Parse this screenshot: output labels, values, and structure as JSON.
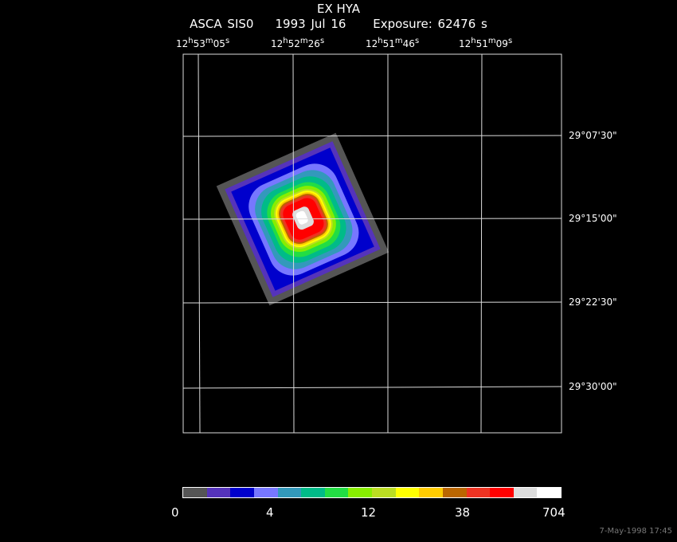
{
  "header": {
    "target": "EX HYA",
    "instrument": "ASCA SIS0",
    "date": "1993 Jul 16",
    "exposure": "Exposure: 62476 s"
  },
  "ra_ticks": [
    {
      "h": "12",
      "m": "53",
      "s": "05"
    },
    {
      "h": "12",
      "m": "52",
      "s": "26"
    },
    {
      "h": "12",
      "m": "51",
      "s": "46"
    },
    {
      "h": "12",
      "m": "51",
      "s": "09"
    }
  ],
  "dec_ticks": [
    "29°07'30\"",
    "29°15'00\"",
    "29°22'30\"",
    "29°30'00\""
  ],
  "colorbar": {
    "colors": [
      "#555555",
      "#5533bb",
      "#0000cc",
      "#7777ff",
      "#3399bb",
      "#00bb88",
      "#22dd44",
      "#88ee00",
      "#bbdd22",
      "#ffff00",
      "#ffcc00",
      "#bb6600",
      "#ee3322",
      "#ff0000",
      "#dddddd",
      "#ffffff"
    ],
    "labels": [
      "0",
      "4",
      "12",
      "38",
      "704"
    ]
  },
  "footer": {
    "stamp": "7-May-1998 17:45"
  }
}
